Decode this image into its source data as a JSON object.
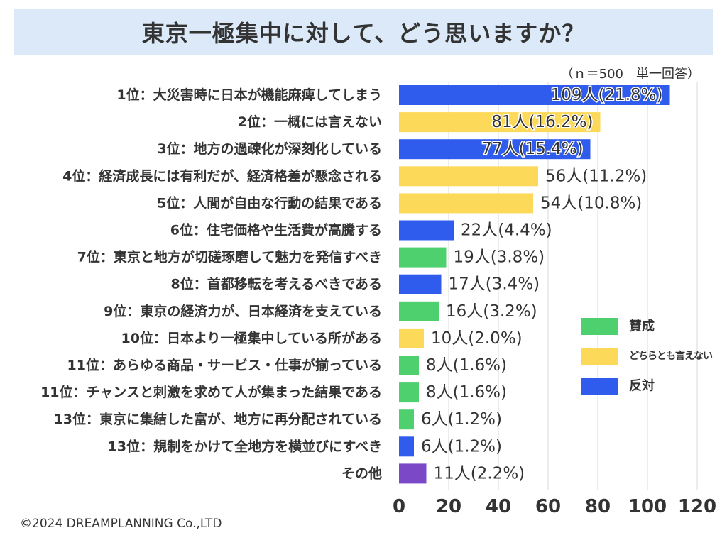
{
  "title": "東京一極集中に対して、どう思いますか？",
  "note": "（ｎ＝500　単一回答）",
  "copyright": "©2024 DREAMPLANNING Co.,LTD",
  "colors": {
    "favor": "#4fd06f",
    "neutral": "#fdd95a",
    "against": "#2f5ced",
    "other": "#7b48c8",
    "grid": "#d9d9d9"
  },
  "chart_data": {
    "type": "bar",
    "orientation": "horizontal",
    "xlim": [
      0,
      120
    ],
    "ticks": [
      0,
      20,
      40,
      60,
      80,
      100,
      120
    ],
    "grid": true,
    "legend_position": "right",
    "legend": [
      {
        "key": "favor",
        "label": "賛成"
      },
      {
        "key": "neutral",
        "label": "どちらとも言えない"
      },
      {
        "key": "against",
        "label": "反対"
      }
    ],
    "categories": [
      "1位：大災害時に日本が機能麻痺してしまう",
      "2位：一概には言えない",
      "3位：地方の過疎化が深刻化している",
      "4位：経済成長には有利だが、経済格差が懸念される",
      "5位：人間が自由な行動の結果である",
      "6位：住宅価格や生活費が高騰する",
      "7位：東京と地方が切磋琢磨して魅力を発信すべき",
      "8位：首都移転を考えるべきである",
      "9位：東京の経済力が、日本経済を支えている",
      "10位：日本より一極集中している所がある",
      "11位：あらゆる商品・サービス・仕事が揃っている",
      "11位：チャンスと刺激を求めて人が集まった結果である",
      "13位：東京に集結した富が、地方に再分配されている",
      "13位：規制をかけて全地方を横並びにすべき",
      "その他"
    ],
    "values": [
      109,
      81,
      77,
      56,
      54,
      22,
      19,
      17,
      16,
      10,
      8,
      8,
      6,
      6,
      11
    ],
    "labels": [
      "109人(21.8%)",
      "81人(16.2%)",
      "77人(15.4%)",
      "56人(11.2%)",
      "54人(10.8%)",
      "22人(4.4%)",
      "19人(3.8%)",
      "17人(3.4%)",
      "16人(3.2%)",
      "10人(2.0%)",
      "8人(1.6%)",
      "8人(1.6%)",
      "6人(1.2%)",
      "6人(1.2%)",
      "11人(2.2%)"
    ],
    "groups": [
      "against",
      "neutral",
      "against",
      "neutral",
      "neutral",
      "against",
      "favor",
      "against",
      "favor",
      "neutral",
      "favor",
      "favor",
      "favor",
      "against",
      "other"
    ]
  }
}
